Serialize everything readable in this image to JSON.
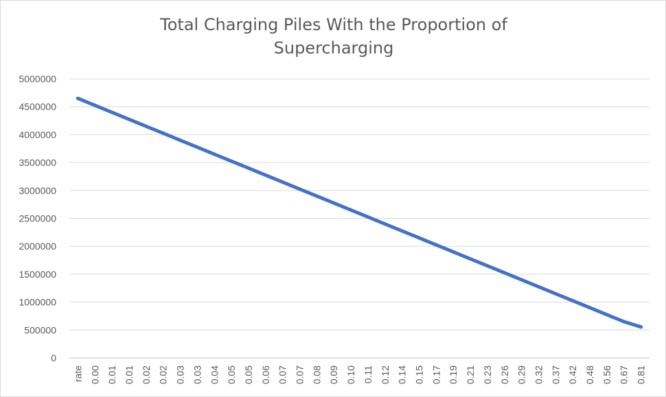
{
  "chart_data": {
    "type": "line",
    "title_lines": [
      "Total Charging Piles With the Proportion of",
      "Supercharging"
    ],
    "xlabel": "",
    "ylabel": "",
    "categories": [
      "rate",
      "0.00",
      "0.01",
      "0.01",
      "0.02",
      "0.02",
      "0.03",
      "0.03",
      "0.04",
      "0.05",
      "0.05",
      "0.06",
      "0.07",
      "0.07",
      "0.08",
      "0.09",
      "0.10",
      "0.11",
      "0.12",
      "0.14",
      "0.15",
      "0.17",
      "0.19",
      "0.21",
      "0.23",
      "0.26",
      "0.29",
      "0.32",
      "0.37",
      "0.42",
      "0.48",
      "0.56",
      "0.67",
      "0.81"
    ],
    "y_ticks": [
      0,
      500000,
      1000000,
      1500000,
      2000000,
      2500000,
      3000000,
      3500000,
      4000000,
      4500000,
      5000000
    ],
    "ylim": [
      0,
      5000000
    ],
    "series": [
      {
        "values": [
          4650000,
          4525000,
          4400000,
          4275000,
          4150000,
          4025000,
          3900000,
          3775000,
          3650000,
          3525000,
          3400000,
          3275000,
          3150000,
          3025000,
          2900000,
          2775000,
          2650000,
          2525000,
          2400000,
          2275000,
          2150000,
          2025000,
          1900000,
          1775000,
          1650000,
          1525000,
          1400000,
          1275000,
          1150000,
          1025000,
          900000,
          775000,
          650000,
          555000
        ],
        "color": "#4472c4"
      }
    ],
    "grid": true,
    "legend": "none"
  }
}
